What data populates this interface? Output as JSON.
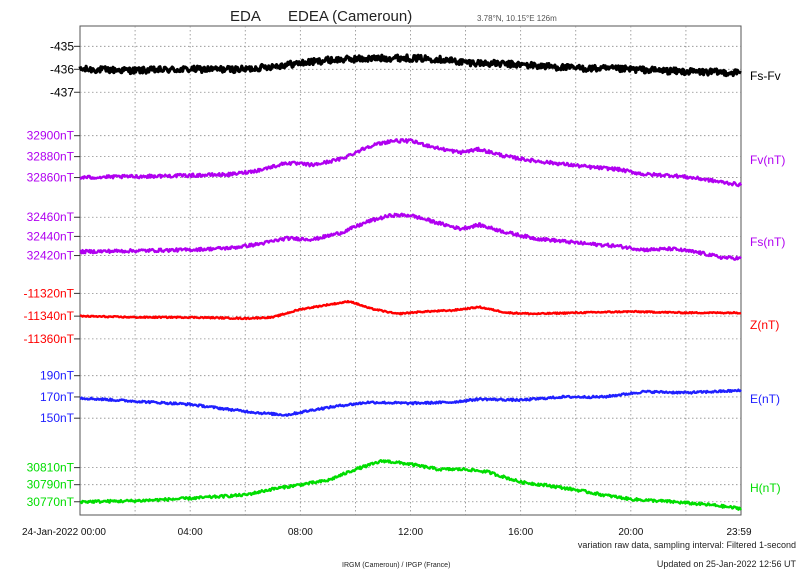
{
  "header": {
    "code": "EDA",
    "station": "EDEA (Cameroun)",
    "location": "3.78°N, 10.15°E  126m"
  },
  "footer": {
    "sampling_note": "variation raw data, sampling interval: Filtered 1-second",
    "institutions": "IRGM (Cameroun) / IPGP (France)",
    "updated": "Updated on 25-Jan-2022 12:56 UT"
  },
  "colors": {
    "fs_fv": "#000000",
    "fv": "#b000f0",
    "fs": "#b000f0",
    "z": "#ff0000",
    "e": "#2020ff",
    "h": "#00dd00",
    "grid": "#8c8c8c"
  },
  "chart_data": {
    "type": "line",
    "title": "EDA   EDEA (Cameroun)",
    "xaxis": {
      "ticks": [
        "24-Jan-2022 00:00",
        "04:00",
        "08:00",
        "12:00",
        "16:00",
        "20:00",
        "23:59"
      ],
      "range_hours": [
        0,
        24
      ]
    },
    "grid": "dotted",
    "legend_placement": "right",
    "series": [
      {
        "name": "Fs-Fv",
        "color": "#000000",
        "y_ticks": [
          "-435",
          "-436",
          "-437"
        ],
        "y_tick_values": [
          -435,
          -436,
          -437
        ],
        "y_range": [
          -437.25,
          -434.55
        ],
        "points": [
          [
            0,
            -436.0
          ],
          [
            2,
            -436.05
          ],
          [
            4,
            -436.0
          ],
          [
            6,
            -436.0
          ],
          [
            7.5,
            -435.8
          ],
          [
            9,
            -435.6
          ],
          [
            10,
            -435.55
          ],
          [
            11.5,
            -435.5
          ],
          [
            13,
            -435.55
          ],
          [
            14,
            -435.7
          ],
          [
            16,
            -435.8
          ],
          [
            18,
            -435.95
          ],
          [
            20,
            -436.0
          ],
          [
            22,
            -436.1
          ],
          [
            24,
            -436.15
          ]
        ],
        "noise": 0.14,
        "line_width": 3.2
      },
      {
        "name": "Fv(nT)",
        "color": "#b000f0",
        "y_ticks": [
          "32900nT",
          "32880nT",
          "32860nT"
        ],
        "y_tick_values": [
          32900,
          32880,
          32860
        ],
        "y_range": [
          32850,
          32915
        ],
        "points": [
          [
            0,
            32860
          ],
          [
            2,
            32861
          ],
          [
            4,
            32862
          ],
          [
            5.5,
            32863
          ],
          [
            6.5,
            32867
          ],
          [
            7.5,
            32874
          ],
          [
            8.5,
            32872
          ],
          [
            9.5,
            32878
          ],
          [
            10.5,
            32890
          ],
          [
            11.3,
            32895
          ],
          [
            12,
            32895
          ],
          [
            13,
            32888
          ],
          [
            13.8,
            32884
          ],
          [
            14.5,
            32887
          ],
          [
            15.5,
            32880
          ],
          [
            16.5,
            32876
          ],
          [
            17.5,
            32873
          ],
          [
            18.5,
            32870
          ],
          [
            19.5,
            32868
          ],
          [
            20.5,
            32863
          ],
          [
            21.5,
            32862
          ],
          [
            22.5,
            32859
          ],
          [
            23.2,
            32856
          ],
          [
            24,
            32853
          ]
        ],
        "noise": 1.6,
        "line_width": 2.4
      },
      {
        "name": "Fs(nT)",
        "color": "#b000f0",
        "y_ticks": [
          "32460nT",
          "32440nT",
          "32420nT"
        ],
        "y_tick_values": [
          32460,
          32440,
          32420
        ],
        "y_range": [
          32407,
          32478
        ],
        "points": [
          [
            0,
            32424
          ],
          [
            2,
            32425
          ],
          [
            4,
            32426
          ],
          [
            5.5,
            32428
          ],
          [
            6.5,
            32432
          ],
          [
            7.5,
            32438
          ],
          [
            8.5,
            32437
          ],
          [
            9.5,
            32444
          ],
          [
            10.5,
            32456
          ],
          [
            11.3,
            32462
          ],
          [
            12,
            32462
          ],
          [
            13,
            32454
          ],
          [
            13.8,
            32448
          ],
          [
            14.5,
            32452
          ],
          [
            15.5,
            32444
          ],
          [
            16.5,
            32438
          ],
          [
            17.5,
            32435
          ],
          [
            18.5,
            32432
          ],
          [
            19.5,
            32430
          ],
          [
            20.5,
            32426
          ],
          [
            21.5,
            32427
          ],
          [
            22.5,
            32423
          ],
          [
            23.3,
            32418
          ],
          [
            24,
            32417
          ]
        ],
        "noise": 1.7,
        "line_width": 2.4
      },
      {
        "name": "Z(nT)",
        "color": "#ff0000",
        "y_ticks": [
          "-11320nT",
          "-11340nT",
          "-11360nT"
        ],
        "y_tick_values": [
          -11320,
          -11340,
          -11360
        ],
        "y_range": [
          -11368,
          -11310
        ],
        "points": [
          [
            0,
            -11340
          ],
          [
            2,
            -11341
          ],
          [
            4,
            -11341
          ],
          [
            6,
            -11342
          ],
          [
            7,
            -11341
          ],
          [
            8,
            -11334
          ],
          [
            9,
            -11330
          ],
          [
            9.8,
            -11327
          ],
          [
            10.5,
            -11333
          ],
          [
            11.5,
            -11338
          ],
          [
            12.5,
            -11336
          ],
          [
            13.5,
            -11335
          ],
          [
            14.5,
            -11332
          ],
          [
            15.5,
            -11337
          ],
          [
            16.5,
            -11338
          ],
          [
            18,
            -11337
          ],
          [
            20,
            -11336
          ],
          [
            22,
            -11337
          ],
          [
            24,
            -11337
          ]
        ],
        "noise": 0.6,
        "line_width": 2.4
      },
      {
        "name": "E(nT)",
        "color": "#2020ff",
        "y_ticks": [
          "190nT",
          "170nT",
          "150nT"
        ],
        "y_tick_values": [
          190,
          170,
          150
        ],
        "y_range": [
          137,
          201
        ],
        "points": [
          [
            0,
            169
          ],
          [
            2,
            166
          ],
          [
            4,
            163
          ],
          [
            5.5,
            158
          ],
          [
            6.5,
            155
          ],
          [
            7.5,
            153
          ],
          [
            8.5,
            158
          ],
          [
            9.5,
            162
          ],
          [
            10.5,
            165
          ],
          [
            12,
            164
          ],
          [
            13.5,
            165
          ],
          [
            14.5,
            168
          ],
          [
            16,
            167
          ],
          [
            17.5,
            170
          ],
          [
            19,
            170
          ],
          [
            20.5,
            175
          ],
          [
            22,
            174
          ],
          [
            23,
            175
          ],
          [
            24,
            176
          ]
        ],
        "noise": 1.0,
        "line_width": 2.4
      },
      {
        "name": "H(nT)",
        "color": "#00dd00",
        "y_ticks": [
          "30810nT",
          "30790nT",
          "30770nT"
        ],
        "y_tick_values": [
          30810,
          30790,
          30770
        ],
        "y_range": [
          30758,
          30840
        ],
        "points": [
          [
            0,
            30770
          ],
          [
            2,
            30771
          ],
          [
            4,
            30774
          ],
          [
            6,
            30778
          ],
          [
            7,
            30785
          ],
          [
            8,
            30790
          ],
          [
            9,
            30795
          ],
          [
            10,
            30808
          ],
          [
            11,
            30818
          ],
          [
            12,
            30814
          ],
          [
            13,
            30808
          ],
          [
            14,
            30808
          ],
          [
            14.8,
            30805
          ],
          [
            16,
            30793
          ],
          [
            17,
            30789
          ],
          [
            18,
            30784
          ],
          [
            19,
            30778
          ],
          [
            20,
            30773
          ],
          [
            21.5,
            30770
          ],
          [
            23,
            30766
          ],
          [
            24,
            30762
          ]
        ],
        "noise": 1.6,
        "line_width": 2.4
      }
    ]
  }
}
